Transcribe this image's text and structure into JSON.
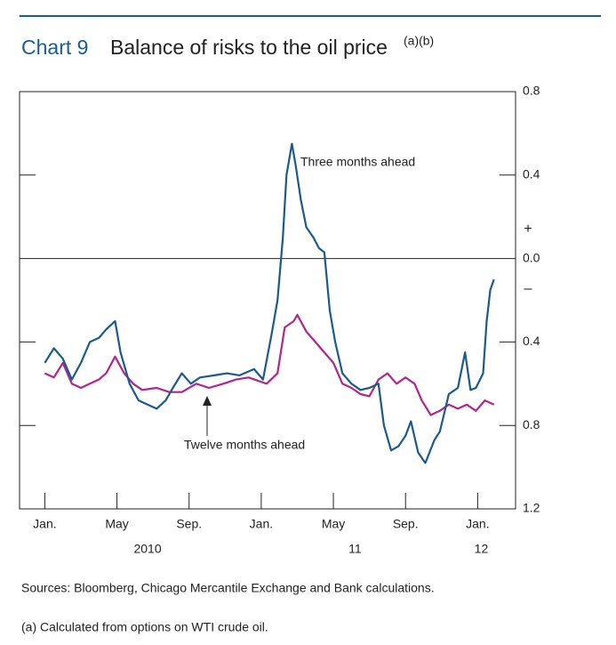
{
  "chart_data": {
    "type": "line",
    "title_label": "Chart 9",
    "title": "Balance of risks to the oil price",
    "title_notes": "(a)(b)",
    "sign_labels": [
      "+",
      "–"
    ],
    "sources": "Sources:  Bloomberg, Chicago Mercantile Exchange and Bank calculations.",
    "footnote": "(a)  Calculated from options on WTI crude oil.",
    "xlim": [
      -1.4,
      26.1
    ],
    "xticks": [
      {
        "value": 0,
        "label": "Jan."
      },
      {
        "value": 4,
        "label": "May"
      },
      {
        "value": 8,
        "label": "Sep."
      },
      {
        "value": 12,
        "label": "Jan."
      },
      {
        "value": 16,
        "label": "May"
      },
      {
        "value": 20,
        "label": "Sep."
      },
      {
        "value": 24,
        "label": "Jan."
      }
    ],
    "year_labels": [
      {
        "value": 5.7,
        "label": "2010"
      },
      {
        "value": 17.2,
        "label": "11"
      },
      {
        "value": 24.2,
        "label": "12"
      }
    ],
    "ylim": [
      -1.2,
      0.8
    ],
    "yticks": [
      0.8,
      0.4,
      {
        "value": 0,
        "label": "0.0"
      },
      {
        "value": -0.4,
        "label": "0.4"
      },
      {
        "value": -0.8,
        "label": "0.8"
      },
      {
        "value": -1.2,
        "label": "1.2"
      }
    ],
    "series": [
      {
        "name": "Three months ahead",
        "color": "#1b5a8c",
        "x": [
          0,
          0.5,
          1.0,
          1.5,
          2.0,
          2.5,
          3.0,
          3.4,
          3.9,
          4.2,
          4.7,
          5.2,
          5.7,
          6.2,
          6.7,
          7.1,
          7.6,
          8.1,
          8.6,
          9.4,
          10.1,
          10.8,
          11.6,
          12.1,
          12.6,
          12.9,
          13.2,
          13.4,
          13.7,
          13.9,
          14.2,
          14.5,
          14.9,
          15.2,
          15.5,
          15.8,
          16.1,
          16.5,
          17.0,
          17.5,
          18.0,
          18.5,
          18.8,
          19.2,
          19.6,
          20.0,
          20.3,
          20.7,
          21.1,
          21.6,
          21.9,
          22.4,
          22.9,
          23.3,
          23.6,
          23.9,
          24.3,
          24.5,
          24.7,
          24.9
        ],
        "values": [
          -0.5,
          -0.43,
          -0.48,
          -0.58,
          -0.5,
          -0.4,
          -0.38,
          -0.34,
          -0.3,
          -0.45,
          -0.6,
          -0.68,
          -0.7,
          -0.72,
          -0.68,
          -0.62,
          -0.55,
          -0.6,
          -0.57,
          -0.56,
          -0.55,
          -0.56,
          -0.53,
          -0.58,
          -0.35,
          -0.2,
          0.1,
          0.4,
          0.55,
          0.45,
          0.28,
          0.15,
          0.1,
          0.05,
          0.03,
          -0.25,
          -0.4,
          -0.55,
          -0.6,
          -0.63,
          -0.62,
          -0.6,
          -0.8,
          -0.92,
          -0.9,
          -0.85,
          -0.78,
          -0.93,
          -0.98,
          -0.87,
          -0.83,
          -0.65,
          -0.62,
          -0.45,
          -0.63,
          -0.62,
          -0.55,
          -0.3,
          -0.15,
          -0.1
        ]
      },
      {
        "name": "Twelve months ahead",
        "color": "#b0268a",
        "x": [
          0,
          0.5,
          1.0,
          1.5,
          2.0,
          2.5,
          3.0,
          3.4,
          3.9,
          4.4,
          4.9,
          5.4,
          6.2,
          6.9,
          7.6,
          8.4,
          9.1,
          9.9,
          10.6,
          11.3,
          12.3,
          12.9,
          13.3,
          13.8,
          14.0,
          14.5,
          15.0,
          15.5,
          16.0,
          16.5,
          17.0,
          17.5,
          18.0,
          18.5,
          19.0,
          19.5,
          20.0,
          20.5,
          20.9,
          21.4,
          21.9,
          22.4,
          22.9,
          23.4,
          23.9,
          24.4,
          24.9
        ],
        "values": [
          -0.55,
          -0.57,
          -0.5,
          -0.6,
          -0.62,
          -0.6,
          -0.58,
          -0.55,
          -0.47,
          -0.55,
          -0.6,
          -0.63,
          -0.62,
          -0.64,
          -0.64,
          -0.6,
          -0.62,
          -0.6,
          -0.58,
          -0.57,
          -0.6,
          -0.55,
          -0.33,
          -0.3,
          -0.27,
          -0.35,
          -0.4,
          -0.45,
          -0.5,
          -0.6,
          -0.62,
          -0.65,
          -0.66,
          -0.58,
          -0.55,
          -0.6,
          -0.57,
          -0.6,
          -0.68,
          -0.75,
          -0.73,
          -0.7,
          -0.72,
          -0.7,
          -0.73,
          -0.68,
          -0.7
        ]
      }
    ]
  }
}
